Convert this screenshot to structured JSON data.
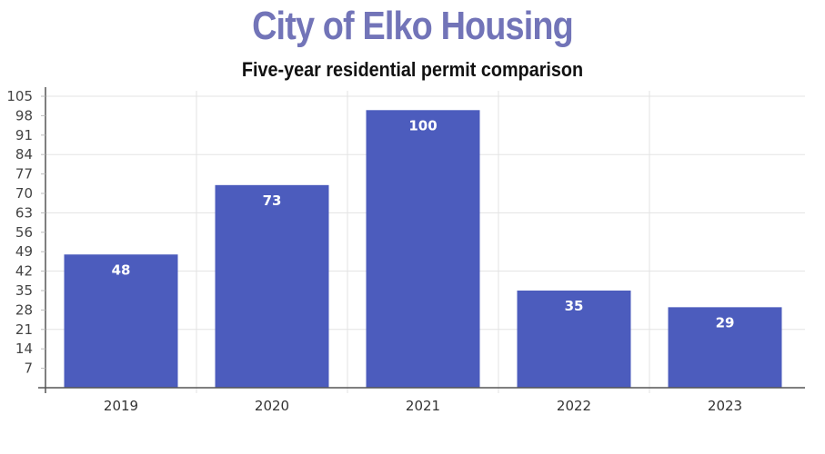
{
  "header": {
    "title": "City of Elko Housing",
    "subtitle": "Five-year residential permit comparison"
  },
  "colors": {
    "title": "#7274b8",
    "bar": "#4c5cbd",
    "grid": "#e3e3e3",
    "axis": "#555555"
  },
  "chart_data": {
    "type": "bar",
    "title": "City of Elko Housing",
    "subtitle": "Five-year residential permit comparison",
    "categories": [
      "2019",
      "2020",
      "2021",
      "2022",
      "2023"
    ],
    "values": [
      48,
      73,
      100,
      35,
      29
    ],
    "xlabel": "",
    "ylabel": "",
    "ylim": [
      0,
      105
    ],
    "yticks": [
      7,
      14,
      21,
      28,
      35,
      42,
      49,
      56,
      63,
      70,
      77,
      84,
      91,
      98,
      105
    ],
    "grid": {
      "horizontal_at": [
        21,
        42,
        63,
        84,
        105
      ],
      "vertical_between_categories": true
    },
    "data_labels": true,
    "legend": "none"
  }
}
